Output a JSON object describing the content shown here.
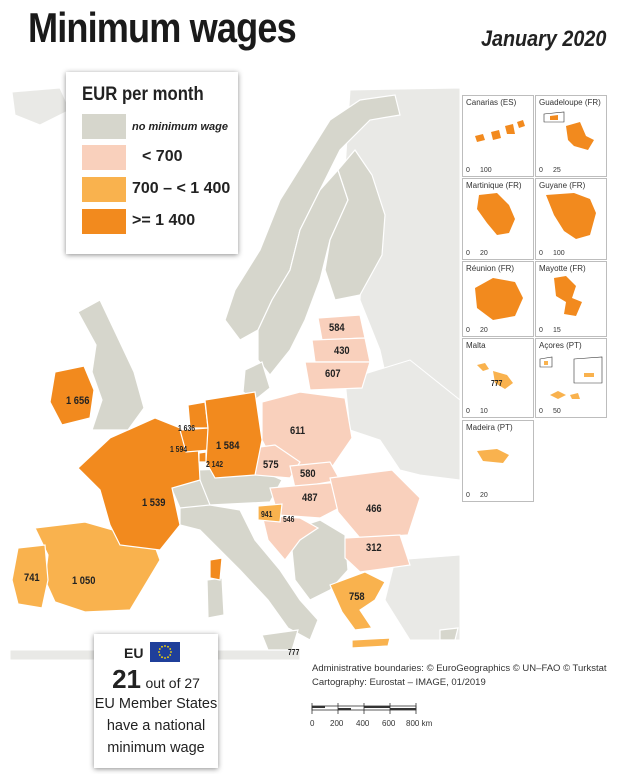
{
  "title": "Minimum wages",
  "date": "January 2020",
  "legend": {
    "title": "EUR per month",
    "items": [
      {
        "label": "no minimum wage",
        "color": "#d6d6cc"
      },
      {
        "label": "< 700",
        "color": "#f9d0bc"
      },
      {
        "label": "700 – < 1 400",
        "color": "#f9b24e"
      },
      {
        "label": ">= 1 400",
        "color": "#f28a1e"
      }
    ]
  },
  "countries": [
    {
      "name": "Ireland",
      "value": "1 656",
      "class": "high"
    },
    {
      "name": "Luxembourg",
      "value": "2 142",
      "class": "high"
    },
    {
      "name": "Netherlands",
      "value": "1 636",
      "class": "high"
    },
    {
      "name": "Belgium",
      "value": "1 594",
      "class": "high"
    },
    {
      "name": "Germany",
      "value": "1 584",
      "class": "high"
    },
    {
      "name": "France",
      "value": "1 539",
      "class": "high"
    },
    {
      "name": "Spain",
      "value": "1 050",
      "class": "mid"
    },
    {
      "name": "Portugal",
      "value": "741",
      "class": "mid"
    },
    {
      "name": "Slovenia",
      "value": "941",
      "class": "mid"
    },
    {
      "name": "Greece",
      "value": "758",
      "class": "mid"
    },
    {
      "name": "Malta",
      "value": "777",
      "class": "mid"
    },
    {
      "name": "Estonia",
      "value": "584",
      "class": "low"
    },
    {
      "name": "Latvia",
      "value": "430",
      "class": "low"
    },
    {
      "name": "Lithuania",
      "value": "607",
      "class": "low"
    },
    {
      "name": "Poland",
      "value": "611",
      "class": "low"
    },
    {
      "name": "Czechia",
      "value": "575",
      "class": "low"
    },
    {
      "name": "Slovakia",
      "value": "580",
      "class": "low"
    },
    {
      "name": "Hungary",
      "value": "487",
      "class": "low"
    },
    {
      "name": "Croatia",
      "value": "546",
      "class": "low"
    },
    {
      "name": "Romania",
      "value": "466",
      "class": "low"
    },
    {
      "name": "Bulgaria",
      "value": "312",
      "class": "low"
    }
  ],
  "insets": [
    {
      "name": "Canarias (ES)",
      "scale": [
        "0",
        "100"
      ]
    },
    {
      "name": "Guadeloupe (FR)",
      "scale": [
        "0",
        "25"
      ]
    },
    {
      "name": "Martinique (FR)",
      "scale": [
        "0",
        "20"
      ]
    },
    {
      "name": "Guyane (FR)",
      "scale": [
        "0",
        "100"
      ]
    },
    {
      "name": "Réunion (FR)",
      "scale": [
        "0",
        "20"
      ]
    },
    {
      "name": "Mayotte (FR)",
      "scale": [
        "0",
        "15"
      ]
    },
    {
      "name": "Malta",
      "scale": [
        "0",
        "10"
      ],
      "value": "777"
    },
    {
      "name": "Açores (PT)",
      "scale": [
        "0",
        "50"
      ]
    },
    {
      "name": "Madeira (PT)",
      "scale": [
        "0",
        "20"
      ]
    }
  ],
  "eu_box": {
    "label": "EU",
    "count": "21",
    "out_of": "out of 27",
    "line1": "EU Member States",
    "line2": "have a national",
    "line3": "minimum wage"
  },
  "credits": {
    "line1": "Administrative boundaries: © EuroGeographics © UN–FAO © Turkstat",
    "line2": "Cartography: Eurostat – IMAGE, 01/2019"
  },
  "scalebar": {
    "ticks": [
      "0",
      "200",
      "400",
      "600",
      "800 km"
    ]
  },
  "colors": {
    "sea": "#ffffff",
    "land": "#e9e9e6",
    "nomin": "#d6d6cc",
    "low": "#f9d0bc",
    "mid": "#f9b24e",
    "high": "#f28a1e",
    "border": "#ffffff"
  }
}
